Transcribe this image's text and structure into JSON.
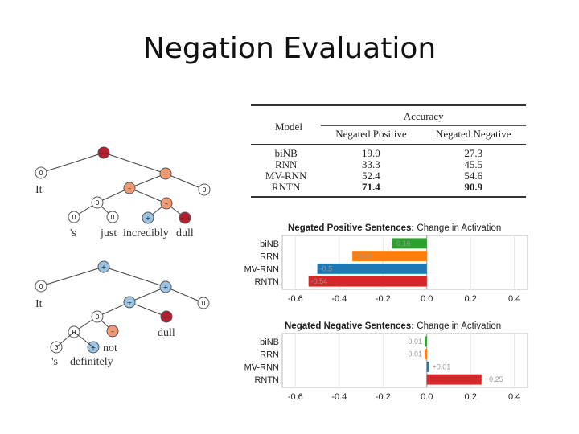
{
  "slide": {
    "title": "Negation Evaluation"
  },
  "trees": {
    "tree1": {
      "words": [
        "It",
        "'s",
        "just",
        "incredibly",
        "dull"
      ]
    },
    "tree2": {
      "words": [
        "It",
        "'s",
        "definitely",
        "not",
        "dull"
      ]
    },
    "node_colors": {
      "very_negative": "#b0202e",
      "negative": "#ef9a72",
      "positive": "#9cc4e4",
      "neutral": "#ffffff"
    }
  },
  "accuracy_table": {
    "model_header": "Model",
    "accuracy_header": "Accuracy",
    "columns": [
      "Negated Positive",
      "Negated Negative"
    ],
    "rows": [
      {
        "model": "biNB",
        "neg_pos": "19.0",
        "neg_neg": "27.3"
      },
      {
        "model": "RNN",
        "neg_pos": "33.3",
        "neg_neg": "45.5"
      },
      {
        "model": "MV-RNN",
        "neg_pos": "52.4",
        "neg_neg": "54.6"
      },
      {
        "model": "RNTN",
        "neg_pos": "71.4",
        "neg_neg": "90.9"
      }
    ]
  },
  "chart_data": [
    {
      "type": "bar",
      "orientation": "horizontal",
      "title_bold": "Negated Positive Sentences:",
      "title_rest": " Change in Activation",
      "categories": [
        "biNB",
        "RRN",
        "MV-RNN",
        "RNTN"
      ],
      "values": [
        -0.16,
        -0.34,
        -0.5,
        -0.54
      ],
      "value_labels": [
        "-0.16",
        "-0.34",
        "-0.5",
        "-0.54"
      ],
      "colors": [
        "#2ca02c",
        "#ff7f0e",
        "#1f77b4",
        "#d62728"
      ],
      "xlim": [
        -0.66,
        0.46
      ],
      "xticks": [
        "-0.6",
        "-0.4",
        "-0.2",
        "0.0",
        "0.2",
        "0.4"
      ],
      "xtick_values": [
        -0.6,
        -0.4,
        -0.2,
        0.0,
        0.2,
        0.4
      ]
    },
    {
      "type": "bar",
      "orientation": "horizontal",
      "title_bold": "Negated Negative Sentences:",
      "title_rest": " Change in Activation",
      "categories": [
        "biNB",
        "RRN",
        "MV-RNN",
        "RNTN"
      ],
      "values": [
        -0.01,
        -0.01,
        0.01,
        0.25
      ],
      "value_labels": [
        "-0.01",
        "-0.01",
        "+0.01",
        "+0.25"
      ],
      "colors": [
        "#2ca02c",
        "#ff7f0e",
        "#1f77b4",
        "#d62728"
      ],
      "xlim": [
        -0.66,
        0.46
      ],
      "xticks": [
        "-0.6",
        "-0.4",
        "-0.2",
        "0.0",
        "0.2",
        "0.4"
      ],
      "xtick_values": [
        -0.6,
        -0.4,
        -0.2,
        0.0,
        0.2,
        0.4
      ]
    }
  ]
}
